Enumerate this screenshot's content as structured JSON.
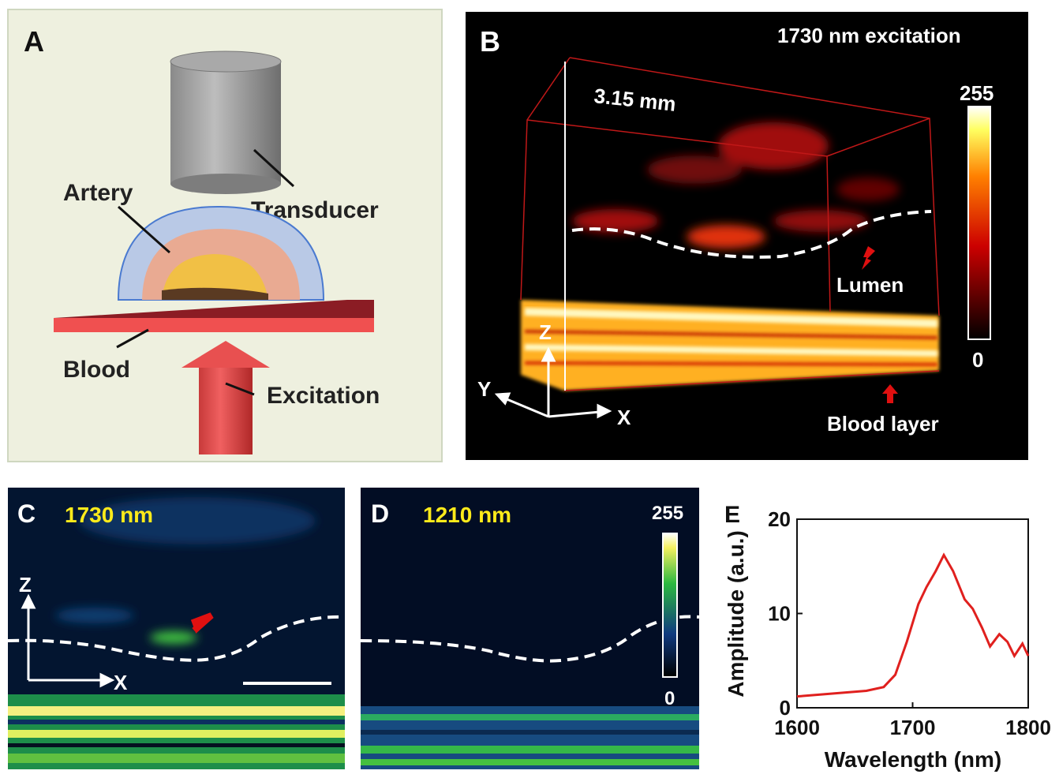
{
  "panels": {
    "a": {
      "label": "A",
      "transducer": "Transducer",
      "artery": "Artery",
      "blood": "Blood",
      "excitation": "Excitation"
    },
    "b": {
      "label": "B",
      "title": "1730 nm excitation",
      "depth": "3.15 mm",
      "colorbar_max": 255,
      "colorbar_min": 0,
      "lumen": "Lumen",
      "blood_layer": "Blood layer",
      "x": "X",
      "y": "Y",
      "z": "Z"
    },
    "c": {
      "label": "C",
      "title": "1730 nm",
      "z": "Z",
      "x": "X"
    },
    "d": {
      "label": "D",
      "title": "1210 nm",
      "colorbar_max": 255,
      "colorbar_min": 0
    }
  },
  "chart_data": {
    "type": "line",
    "label": "E",
    "x_label": "Wavelength (nm)",
    "y_label": "Amplitude (a.u.)",
    "xlim": [
      1600,
      1800
    ],
    "xticks": [
      1600,
      1700,
      1800
    ],
    "ylim": [
      0,
      20
    ],
    "yticks": [
      0,
      10,
      20
    ],
    "x": [
      1600,
      1620,
      1640,
      1660,
      1675,
      1685,
      1695,
      1705,
      1712,
      1720,
      1727,
      1735,
      1745,
      1752,
      1760,
      1767,
      1775,
      1782,
      1788,
      1795,
      1800
    ],
    "series": [
      {
        "color": "#e0201e",
        "values": [
          1.2,
          1.4,
          1.6,
          1.8,
          2.2,
          3.5,
          7,
          11,
          12.8,
          14.5,
          16.2,
          14.5,
          11.5,
          10.5,
          8.5,
          6.5,
          7.8,
          7,
          5.5,
          6.8,
          5.5
        ]
      }
    ]
  }
}
